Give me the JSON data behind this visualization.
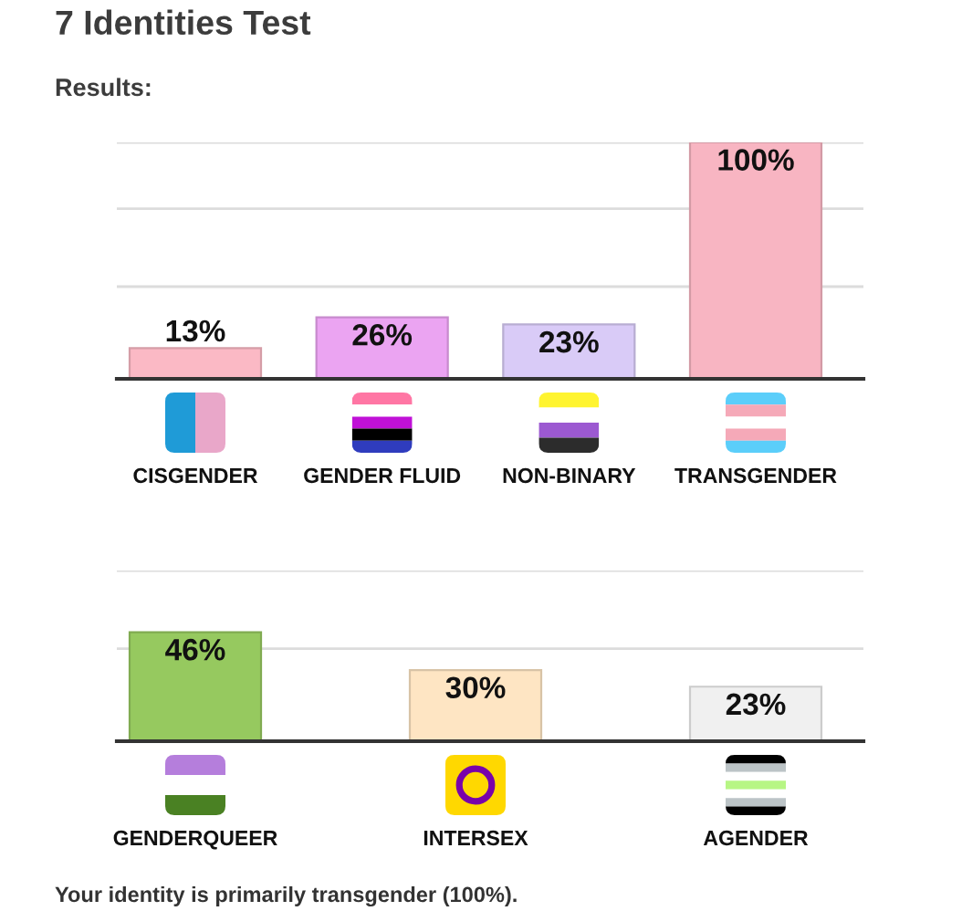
{
  "chart_data": [
    {
      "type": "bar",
      "title": "7 Identities Test",
      "subtitle": "Results:",
      "categories": [
        "CISGENDER",
        "GENDER FLUID",
        "NON-BINARY",
        "TRANSGENDER"
      ],
      "values": [
        13,
        26,
        23,
        100
      ],
      "colors": [
        "#fbb9c5",
        "#eba4f2",
        "#d9cbf7",
        "#f8b5c2"
      ],
      "value_labels": [
        "13%",
        "26%",
        "23%",
        "100%"
      ],
      "ylim": [
        0,
        100
      ],
      "yticks": [
        {
          "value": 39,
          "label": null
        },
        {
          "value": 72,
          "label": null
        },
        {
          "value": 100,
          "label": null
        }
      ],
      "grid": "y",
      "tick_labels": "x"
    },
    {
      "type": "bar",
      "categories": [
        "GENDERQUEER",
        "INTERSEX",
        "AGENDER"
      ],
      "values": [
        46,
        30,
        23
      ],
      "colors": [
        "#96c95f",
        "#fee5c3",
        "#f0f0f0"
      ],
      "value_labels": [
        "46%",
        "30%",
        "23%"
      ],
      "ylim": [
        0,
        72
      ],
      "yticks": [
        {
          "value": 39,
          "label": null
        },
        {
          "value": 72,
          "label": null
        }
      ],
      "grid": "y",
      "tick_labels": "x",
      "annotations": [
        "Your identity is primarily transgender (100%)."
      ]
    }
  ]
}
